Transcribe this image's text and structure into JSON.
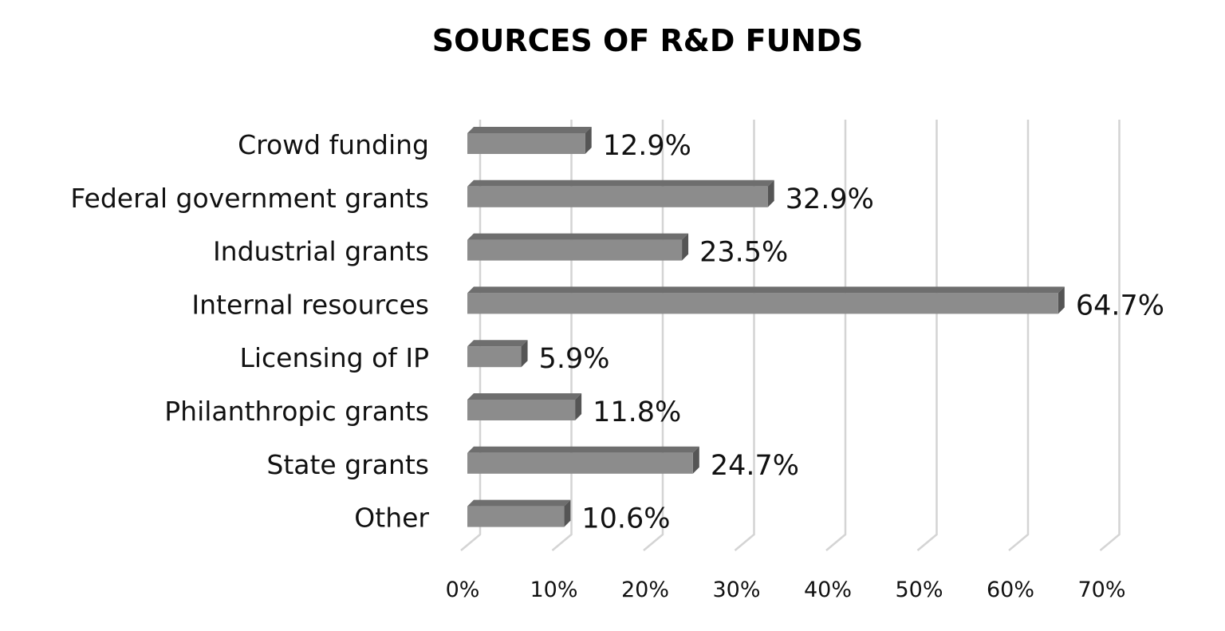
{
  "chart_data": {
    "type": "bar",
    "orientation": "horizontal",
    "style": "3d",
    "title": "SOURCES OF R&D FUNDS",
    "categories": [
      "Crowd funding",
      "Federal government grants",
      "Industrial grants",
      "Internal resources",
      "Licensing of IP",
      "Philanthropic grants",
      "State grants",
      "Other"
    ],
    "values": [
      12.9,
      32.9,
      23.5,
      64.7,
      5.9,
      11.8,
      24.7,
      10.6
    ],
    "value_labels": [
      "12.9%",
      "32.9%",
      "23.5%",
      "64.7%",
      "5.9%",
      "11.8%",
      "24.7%",
      "10.6%"
    ],
    "xlabel": "",
    "ylabel": "",
    "xlim": [
      0,
      70
    ],
    "xticks": [
      "0%",
      "10%",
      "20%",
      "30%",
      "40%",
      "50%",
      "60%",
      "70%"
    ],
    "grid": true,
    "legend": "none",
    "colors": {
      "bar_front": "#8c8c8c",
      "bar_top": "#6e6e6e",
      "bar_side": "#555555",
      "grid": "#d4d4d4"
    }
  }
}
